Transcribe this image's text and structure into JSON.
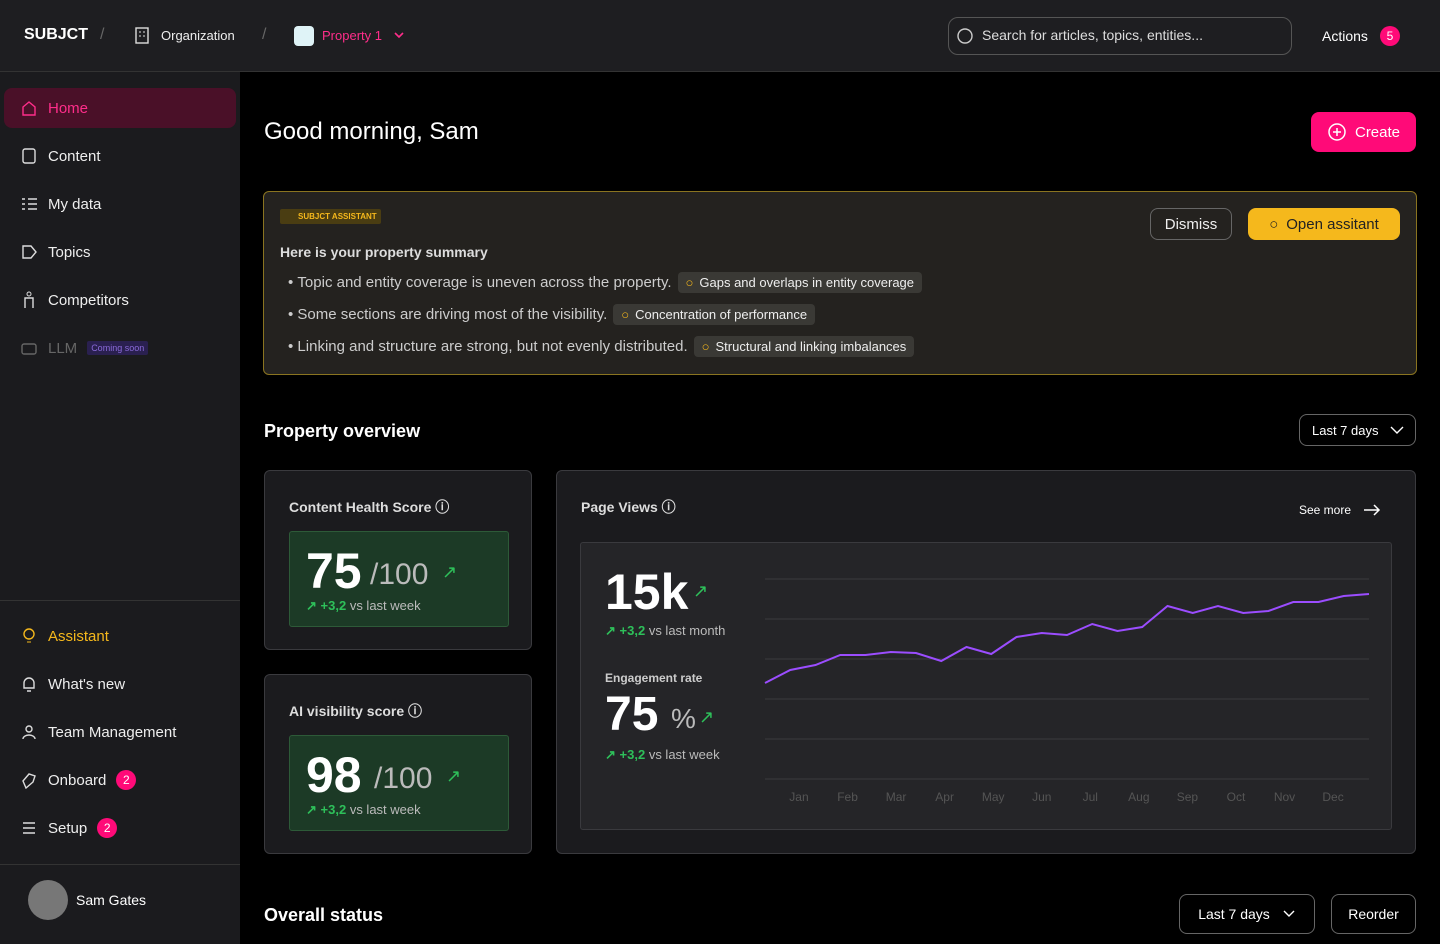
{
  "topbar": {
    "brand": "SUBJCT",
    "organization": "Organization",
    "property": "Property 1",
    "search_placeholder": "Search for articles, topics, entities...",
    "actions": "Actions",
    "actions_count": 5
  },
  "sidebar": {
    "nav": [
      {
        "label": "Home"
      },
      {
        "label": "Content"
      },
      {
        "label": "My data"
      },
      {
        "label": "Topics"
      },
      {
        "label": "Competitors"
      },
      {
        "label": "LLM",
        "badge": "Coming soon"
      }
    ],
    "bottom": [
      {
        "label": "Assistant"
      },
      {
        "label": "What's new"
      },
      {
        "label": "Team Management"
      },
      {
        "label": "Onboard",
        "badge": 2
      },
      {
        "label": "Setup",
        "badge": 2
      }
    ],
    "user": "Sam Gates"
  },
  "main": {
    "greeting": "Good morning, Sam",
    "create": "Create",
    "assistant": {
      "tag": "SUBJCT ASSISTANT",
      "title": "Here is your property summary",
      "dismiss": "Dismiss",
      "open": "Open assitant",
      "items": [
        {
          "text": "Topic and entity coverage is uneven across the property.",
          "chip": "Gaps and overlaps in entity coverage"
        },
        {
          "text": "Some sections are driving most of the visibility.",
          "chip": "Concentration of performance"
        },
        {
          "text": "Linking and structure are strong, but not evenly distributed.",
          "chip": "Structural and linking imbalances"
        }
      ]
    },
    "overview": {
      "title": "Property overview",
      "range": "Last 7 days",
      "health": {
        "title": "Content Health Score",
        "score": 75,
        "max": "/100",
        "delta": "+3,2",
        "delta_label": "vs last week"
      },
      "ai": {
        "title": "AI visibility score",
        "score": 98,
        "max": "/100",
        "delta": "+3,2",
        "delta_label": "vs last week"
      },
      "page_views": {
        "title": "Page Views",
        "see_more": "See more",
        "value": "15k",
        "delta": "+3,2",
        "delta_label": "vs last month",
        "engagement_label": "Engagement rate",
        "engagement": 75,
        "engagement_unit": "%",
        "engagement_delta": "+3,2",
        "engagement_delta_label": "vs last week",
        "chart": {
          "type": "line",
          "color": "#9b4dff",
          "xlim": [
            0.3,
            12.74
          ],
          "xticks": [
            {
              "value": 1,
              "label": "Jan"
            },
            {
              "value": 2,
              "label": "Feb"
            },
            {
              "value": 3,
              "label": "Mar"
            },
            {
              "value": 4,
              "label": "Apr"
            },
            {
              "value": 5,
              "label": "May"
            },
            {
              "value": 6,
              "label": "Jun"
            },
            {
              "value": 7,
              "label": "Jul"
            },
            {
              "value": 8,
              "label": "Aug"
            },
            {
              "value": 9,
              "label": "Sep"
            },
            {
              "value": 10,
              "label": "Oct"
            },
            {
              "value": 11,
              "label": "Nov"
            },
            {
              "value": 12,
              "label": "Dec"
            }
          ],
          "ylim": [
            0,
            100
          ],
          "x": [
            0.3,
            0.82,
            1.34,
            1.85,
            2.37,
            2.89,
            3.41,
            3.93,
            4.45,
            4.96,
            5.48,
            6.0,
            6.52,
            7.04,
            7.56,
            8.07,
            8.59,
            9.11,
            9.63,
            10.15,
            10.67,
            11.18,
            11.7,
            12.22,
            12.74
          ],
          "values": [
            48,
            54.5,
            57,
            62,
            62,
            63.5,
            63,
            59,
            66,
            62.5,
            71,
            73,
            72,
            77.5,
            74,
            76,
            86.5,
            83,
            86.5,
            83,
            84,
            88.5,
            88.5,
            91.5,
            92.5
          ]
        }
      }
    },
    "status": {
      "title": "Overall status",
      "range": "Last 7 days",
      "reorder": "Reorder"
    }
  }
}
